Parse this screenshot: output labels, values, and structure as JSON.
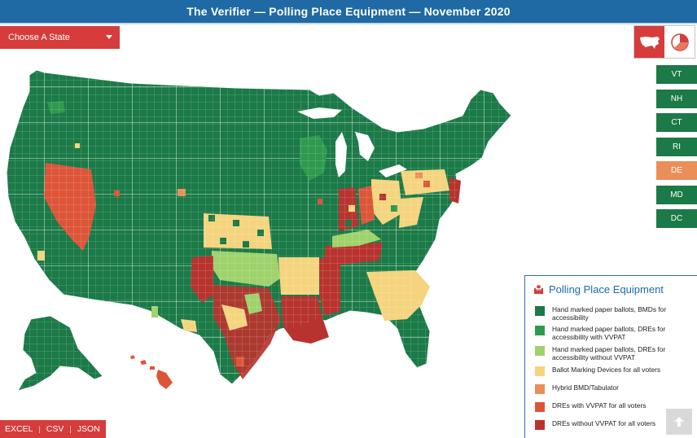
{
  "header": {
    "title": "The Verifier — Polling Place Equipment — November 2020"
  },
  "state_select": {
    "label": "Choose A State"
  },
  "view_toggle": {
    "active": "map",
    "items": [
      "us-map-icon",
      "pie-chart-icon"
    ]
  },
  "small_states": [
    {
      "label": "VT",
      "color": "#1b7a47"
    },
    {
      "label": "NH",
      "color": "#1b7a47"
    },
    {
      "label": "CT",
      "color": "#1b7a47"
    },
    {
      "label": "RI",
      "color": "#1b7a47"
    },
    {
      "label": "DE",
      "color": "#ea8f5a"
    },
    {
      "label": "MD",
      "color": "#1b7a47"
    },
    {
      "label": "DC",
      "color": "#1b7a47"
    }
  ],
  "legend": {
    "title": "Polling Place Equipment",
    "icon": "ballot-box-icon",
    "items": [
      {
        "label": "Hand marked paper ballots, BMDs for accessibility",
        "color": "#1b7a47"
      },
      {
        "label": "Hand marked paper ballots, DREs for accessibility with VVPAT",
        "color": "#2e9a4e"
      },
      {
        "label": "Hand marked paper ballots, DREs for accessibility without VVPAT",
        "color": "#9fd26c"
      },
      {
        "label": "Ballot Marking Devices for all voters",
        "color": "#f4d47e"
      },
      {
        "label": "Hybrid BMD/Tabulator",
        "color": "#ea8f5a"
      },
      {
        "label": "DREs with VVPAT for all voters",
        "color": "#dd5539"
      },
      {
        "label": "DREs without VVPAT for all voters",
        "color": "#b8332f"
      }
    ]
  },
  "exports": {
    "excel": "EXCEL",
    "csv": "CSV",
    "json": "JSON"
  },
  "back_to_top": {
    "icon": "arrow-up-icon"
  }
}
